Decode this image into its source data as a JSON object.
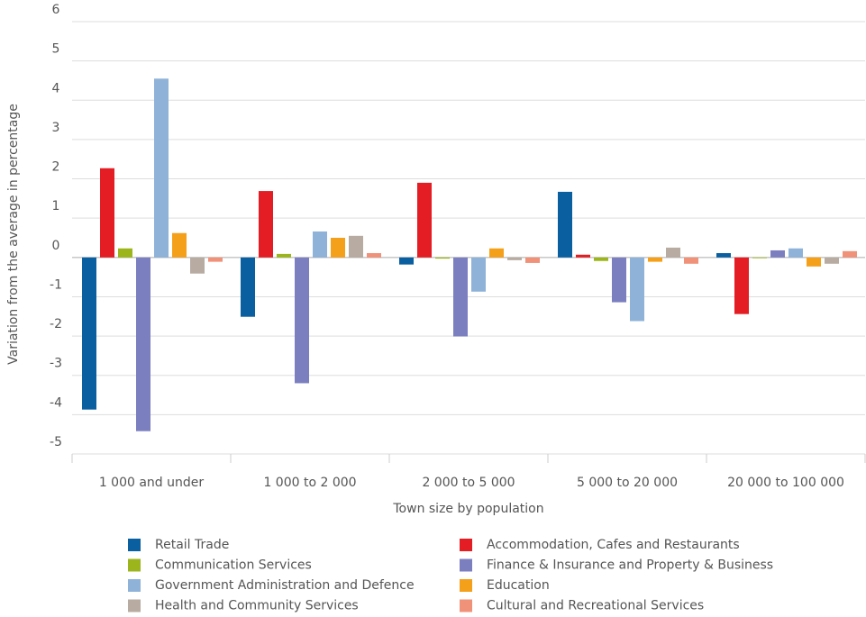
{
  "chart_data": {
    "type": "bar",
    "x_label": "Town size by population",
    "y_label": "Variation from the average in percentage",
    "categories": [
      "1 000 and under",
      "1 000 to 2 000",
      "2 000 to 5 000",
      "5 000 to 20 000",
      "20 000 to 100 000"
    ],
    "series": [
      {
        "name": "Retail Trade",
        "color": "#0a5fa0",
        "values": [
          -3.87,
          -1.51,
          -0.18,
          1.67,
          0.11
        ]
      },
      {
        "name": "Accommodation, Cafes and Restaurants",
        "color": "#e31d23",
        "values": [
          2.27,
          1.69,
          1.9,
          0.07,
          -1.44
        ]
      },
      {
        "name": "Communication Services",
        "color": "#9cb51c",
        "values": [
          0.23,
          0.09,
          -0.03,
          -0.09,
          -0.02
        ]
      },
      {
        "name": "Finance & Insurance and Property & Business",
        "color": "#7b7fc0",
        "values": [
          -4.42,
          -3.2,
          -2.01,
          -1.14,
          0.18
        ]
      },
      {
        "name": "Government Administration and Defence",
        "color": "#8fb2d8",
        "values": [
          4.55,
          0.66,
          -0.87,
          -1.62,
          0.23
        ]
      },
      {
        "name": "Education",
        "color": "#f5a01a",
        "values": [
          0.62,
          0.5,
          0.23,
          -0.11,
          -0.23
        ]
      },
      {
        "name": "Health and Community Services",
        "color": "#b8aba1",
        "values": [
          -0.41,
          0.55,
          -0.07,
          0.25,
          -0.16
        ]
      },
      {
        "name": "Cultural and Recreational Services",
        "color": "#f0917a",
        "values": [
          -0.11,
          0.11,
          -0.14,
          -0.16,
          0.16
        ]
      }
    ],
    "ylim": [
      -5,
      6
    ],
    "yticks": [
      -5,
      -4,
      -3,
      -2,
      -1,
      0,
      1,
      2,
      3,
      4,
      5,
      6
    ],
    "grid": true
  }
}
